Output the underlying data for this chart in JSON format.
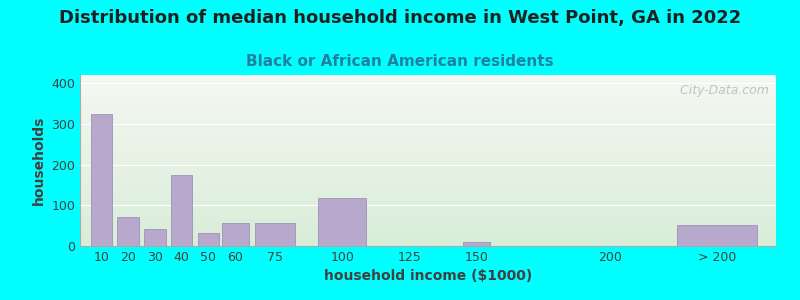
{
  "title": "Distribution of median household income in West Point, GA in 2022",
  "subtitle": "Black or African American residents",
  "xlabel": "household income ($1000)",
  "ylabel": "households",
  "background_color": "#00FFFF",
  "plot_bg_top": "#f5f8f2",
  "plot_bg_bottom": "#d8edd8",
  "bar_color": "#b8a8cc",
  "bar_edge_color": "#a090bb",
  "categories": [
    "10",
    "20",
    "30",
    "40",
    "50",
    "60",
    "75",
    "100",
    "125",
    "150",
    "200",
    "> 200"
  ],
  "values": [
    325,
    72,
    42,
    175,
    32,
    57,
    57,
    117,
    0,
    10,
    0,
    52
  ],
  "x_positions": [
    10,
    20,
    30,
    40,
    50,
    60,
    75,
    100,
    125,
    150,
    200,
    240
  ],
  "bar_widths": [
    8,
    8,
    8,
    8,
    8,
    10,
    15,
    18,
    10,
    10,
    5,
    30
  ],
  "yticks": [
    0,
    100,
    200,
    300,
    400
  ],
  "ylim": [
    0,
    420
  ],
  "xlim": [
    2,
    262
  ],
  "watermark": "  City-Data.com",
  "title_fontsize": 13,
  "subtitle_fontsize": 11,
  "axis_label_fontsize": 10,
  "tick_fontsize": 9,
  "subtitle_color": "#2080a0",
  "title_color": "#202020",
  "axis_label_color": "#404040",
  "tick_color": "#404040",
  "watermark_color": "#b0bcc8",
  "grid_color": "#ffffff",
  "spine_color": "#aaaaaa"
}
